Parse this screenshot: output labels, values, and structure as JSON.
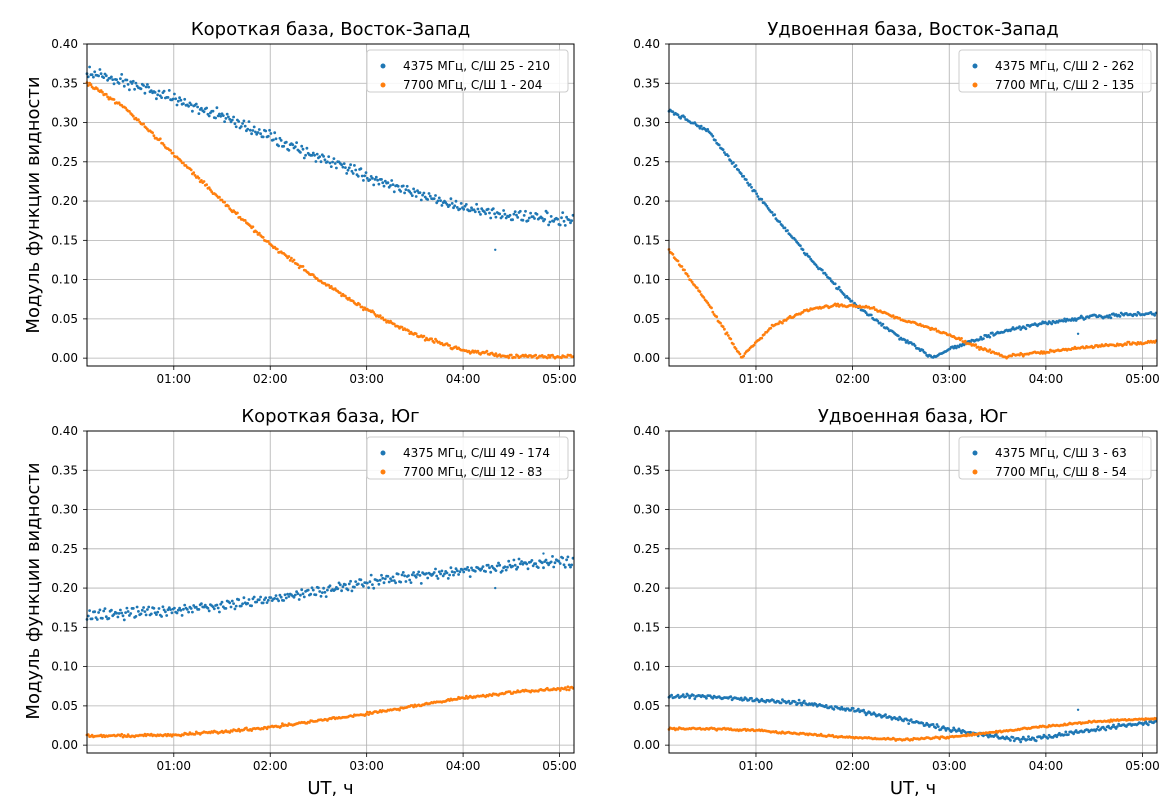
{
  "figure": {
    "ylabel": "Модуль функции видности",
    "xlabel": "UT, ч"
  },
  "chart_data": [
    {
      "type": "scatter",
      "title": "Короткая база, Восток-Запад",
      "ylabel": "Модуль функции видности",
      "xlabel": "",
      "xlim": [
        "00:06",
        "05:09"
      ],
      "ylim": [
        -0.01,
        0.4
      ],
      "xticks": [
        "01:00",
        "02:00",
        "03:00",
        "04:00",
        "05:00"
      ],
      "yticks": [
        "0.00",
        "0.05",
        "0.10",
        "0.15",
        "0.20",
        "0.25",
        "0.30",
        "0.35",
        "0.40"
      ],
      "grid": true,
      "legend": "top-right",
      "series": [
        {
          "name": "4375 МГц, С/Ш 25 - 210",
          "color": "#1f77b4",
          "noise": 0.004,
          "ripple": 0.004,
          "points": [
            [
              "00:06",
              0.364
            ],
            [
              "00:30",
              0.352
            ],
            [
              "01:00",
              0.33
            ],
            [
              "01:30",
              0.308
            ],
            [
              "02:00",
              0.282
            ],
            [
              "02:30",
              0.255
            ],
            [
              "03:00",
              0.232
            ],
            [
              "03:30",
              0.21
            ],
            [
              "04:00",
              0.192
            ],
            [
              "04:30",
              0.181
            ],
            [
              "05:00",
              0.176
            ],
            [
              "05:09",
              0.175
            ]
          ],
          "outliers": [
            [
              "04:20",
              0.138
            ]
          ]
        },
        {
          "name": "7700 МГц, С/Ш 1 - 204",
          "color": "#ff7f0e",
          "noise": 0.002,
          "ripple": 0.0,
          "points": [
            [
              "00:06",
              0.35
            ],
            [
              "00:30",
              0.318
            ],
            [
              "01:00",
              0.26
            ],
            [
              "01:30",
              0.2
            ],
            [
              "02:00",
              0.145
            ],
            [
              "02:30",
              0.1
            ],
            [
              "03:00",
              0.061
            ],
            [
              "03:30",
              0.03
            ],
            [
              "04:00",
              0.01
            ],
            [
              "04:30",
              0.002
            ],
            [
              "05:00",
              0.002
            ],
            [
              "05:09",
              0.003
            ]
          ],
          "outliers": []
        }
      ]
    },
    {
      "type": "scatter",
      "title": "Удвоенная база, Восток-Запад",
      "ylabel": "",
      "xlabel": "",
      "xlim": [
        "00:06",
        "05:09"
      ],
      "ylim": [
        -0.01,
        0.4
      ],
      "xticks": [
        "01:00",
        "02:00",
        "03:00",
        "04:00",
        "05:00"
      ],
      "yticks": [
        "0.00",
        "0.05",
        "0.10",
        "0.15",
        "0.20",
        "0.25",
        "0.30",
        "0.35",
        "0.40"
      ],
      "grid": true,
      "legend": "top-right",
      "series": [
        {
          "name": "4375 МГц, С/Ш 2 - 262",
          "color": "#1f77b4",
          "noise": 0.002,
          "ripple": 0.0,
          "points": [
            [
              "00:06",
              0.315
            ],
            [
              "00:30",
              0.29
            ],
            [
              "01:00",
              0.21
            ],
            [
              "01:30",
              0.135
            ],
            [
              "02:00",
              0.07
            ],
            [
              "02:30",
              0.025
            ],
            [
              "02:50",
              0.001
            ],
            [
              "03:00",
              0.012
            ],
            [
              "03:30",
              0.032
            ],
            [
              "04:00",
              0.045
            ],
            [
              "04:30",
              0.053
            ],
            [
              "05:09",
              0.057
            ]
          ],
          "outliers": [
            [
              "04:20",
              0.031
            ]
          ]
        },
        {
          "name": "7700 МГц, С/Ш 2 - 135",
          "color": "#ff7f0e",
          "noise": 0.0015,
          "ripple": 0.0,
          "points": [
            [
              "00:06",
              0.138
            ],
            [
              "00:30",
              0.07
            ],
            [
              "00:51",
              0.001
            ],
            [
              "01:10",
              0.04
            ],
            [
              "01:30",
              0.06
            ],
            [
              "01:50",
              0.068
            ],
            [
              "02:10",
              0.065
            ],
            [
              "02:30",
              0.05
            ],
            [
              "03:00",
              0.03
            ],
            [
              "03:20",
              0.012
            ],
            [
              "03:35",
              0.002
            ],
            [
              "04:00",
              0.008
            ],
            [
              "04:30",
              0.015
            ],
            [
              "05:09",
              0.021
            ]
          ],
          "outliers": []
        }
      ]
    },
    {
      "type": "scatter",
      "title": "Короткая база, Юг",
      "ylabel": "Модуль функции видности",
      "xlabel": "UT, ч",
      "xlim": [
        "00:06",
        "05:09"
      ],
      "ylim": [
        -0.01,
        0.4
      ],
      "xticks": [
        "01:00",
        "02:00",
        "03:00",
        "04:00",
        "05:00"
      ],
      "yticks": [
        "0.00",
        "0.05",
        "0.10",
        "0.15",
        "0.20",
        "0.25",
        "0.30",
        "0.35",
        "0.40"
      ],
      "grid": true,
      "legend": "top-right",
      "series": [
        {
          "name": "4375 МГц, С/Ш 49 - 174",
          "color": "#1f77b4",
          "noise": 0.004,
          "ripple": 0.004,
          "points": [
            [
              "00:06",
              0.165
            ],
            [
              "00:30",
              0.168
            ],
            [
              "01:00",
              0.172
            ],
            [
              "01:30",
              0.177
            ],
            [
              "02:00",
              0.186
            ],
            [
              "02:30",
              0.196
            ],
            [
              "03:00",
              0.207
            ],
            [
              "03:30",
              0.215
            ],
            [
              "04:00",
              0.222
            ],
            [
              "04:30",
              0.228
            ],
            [
              "05:00",
              0.234
            ],
            [
              "05:09",
              0.233
            ]
          ],
          "outliers": [
            [
              "04:20",
              0.2
            ],
            [
              "04:50",
              0.244
            ]
          ]
        },
        {
          "name": "7700 МГц, С/Ш 12 - 83",
          "color": "#ff7f0e",
          "noise": 0.0015,
          "ripple": 0.0,
          "points": [
            [
              "00:06",
              0.012
            ],
            [
              "00:30",
              0.012
            ],
            [
              "01:00",
              0.013
            ],
            [
              "01:30",
              0.017
            ],
            [
              "02:00",
              0.023
            ],
            [
              "02:30",
              0.031
            ],
            [
              "03:00",
              0.04
            ],
            [
              "03:30",
              0.05
            ],
            [
              "04:00",
              0.06
            ],
            [
              "04:30",
              0.067
            ],
            [
              "05:00",
              0.072
            ],
            [
              "05:09",
              0.073
            ]
          ],
          "outliers": []
        }
      ]
    },
    {
      "type": "scatter",
      "title": "Удвоенная база, Юг",
      "ylabel": "",
      "xlabel": "UT, ч",
      "xlim": [
        "00:06",
        "05:09"
      ],
      "ylim": [
        -0.01,
        0.4
      ],
      "xticks": [
        "01:00",
        "02:00",
        "03:00",
        "04:00",
        "05:00"
      ],
      "yticks": [
        "0.00",
        "0.05",
        "0.10",
        "0.15",
        "0.20",
        "0.25",
        "0.30",
        "0.35",
        "0.40"
      ],
      "grid": true,
      "legend": "top-right",
      "series": [
        {
          "name": "4375 МГц, С/Ш 3 - 63",
          "color": "#1f77b4",
          "noise": 0.0015,
          "ripple": 0.0015,
          "points": [
            [
              "00:06",
              0.062
            ],
            [
              "00:30",
              0.062
            ],
            [
              "01:00",
              0.058
            ],
            [
              "01:30",
              0.053
            ],
            [
              "02:00",
              0.045
            ],
            [
              "02:30",
              0.033
            ],
            [
              "03:00",
              0.02
            ],
            [
              "03:30",
              0.01
            ],
            [
              "03:45",
              0.007
            ],
            [
              "04:00",
              0.01
            ],
            [
              "04:30",
              0.02
            ],
            [
              "05:09",
              0.03
            ]
          ],
          "outliers": [
            [
              "04:20",
              0.045
            ]
          ]
        },
        {
          "name": "7700 МГц, С/Ш 8 - 54",
          "color": "#ff7f0e",
          "noise": 0.001,
          "ripple": 0.0,
          "points": [
            [
              "00:06",
              0.021
            ],
            [
              "00:30",
              0.021
            ],
            [
              "01:00",
              0.019
            ],
            [
              "01:30",
              0.014
            ],
            [
              "02:00",
              0.01
            ],
            [
              "02:30",
              0.007
            ],
            [
              "03:00",
              0.01
            ],
            [
              "03:30",
              0.017
            ],
            [
              "04:00",
              0.024
            ],
            [
              "04:30",
              0.03
            ],
            [
              "05:09",
              0.034
            ]
          ],
          "outliers": []
        }
      ]
    }
  ]
}
